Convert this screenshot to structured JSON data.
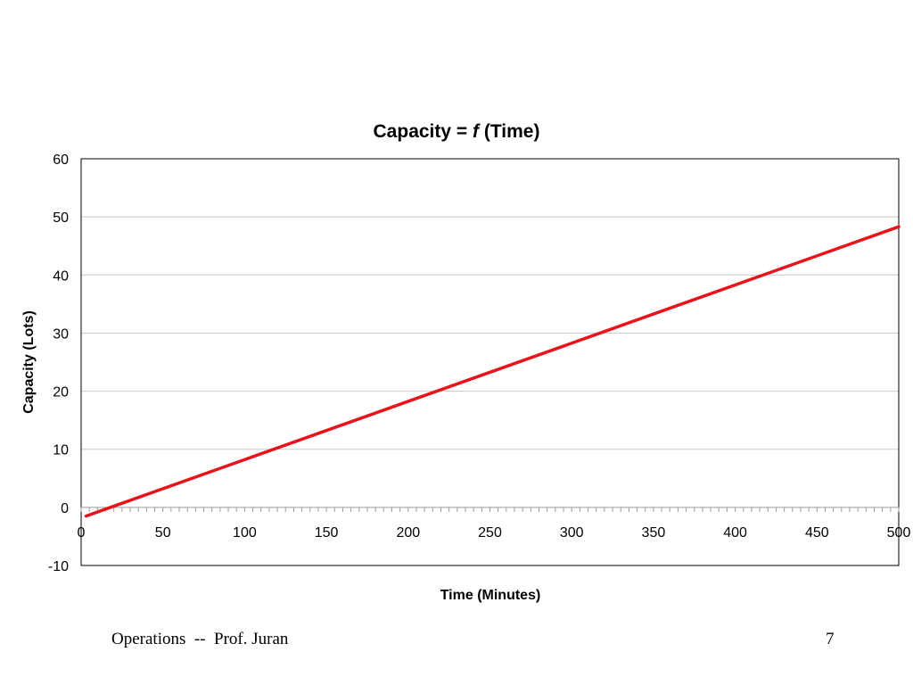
{
  "chart_data": {
    "type": "line",
    "title": {
      "prefix": "Capacity = ",
      "function": "f",
      "suffix": " (Time)"
    },
    "xlabel": "Time (Minutes)",
    "ylabel": "Capacity (Lots)",
    "xlim": [
      0,
      500
    ],
    "ylim": [
      -10,
      60
    ],
    "xticks": [
      0,
      50,
      100,
      150,
      200,
      250,
      300,
      350,
      400,
      450,
      500
    ],
    "yticks": [
      -10,
      0,
      10,
      20,
      30,
      40,
      50,
      60
    ],
    "x_minor_step": 5,
    "grid": "horizontal",
    "legend": "none",
    "series": [
      {
        "color": "#e8141b",
        "x": [
          3,
          500
        ],
        "y": [
          -1.5,
          48.3
        ]
      }
    ]
  },
  "footer": {
    "left": "Operations  --  Prof. Juran",
    "page_number": "7"
  },
  "colors": {
    "line": "#e8141b",
    "grid": "#c8c8c8",
    "axis": "#000000"
  }
}
